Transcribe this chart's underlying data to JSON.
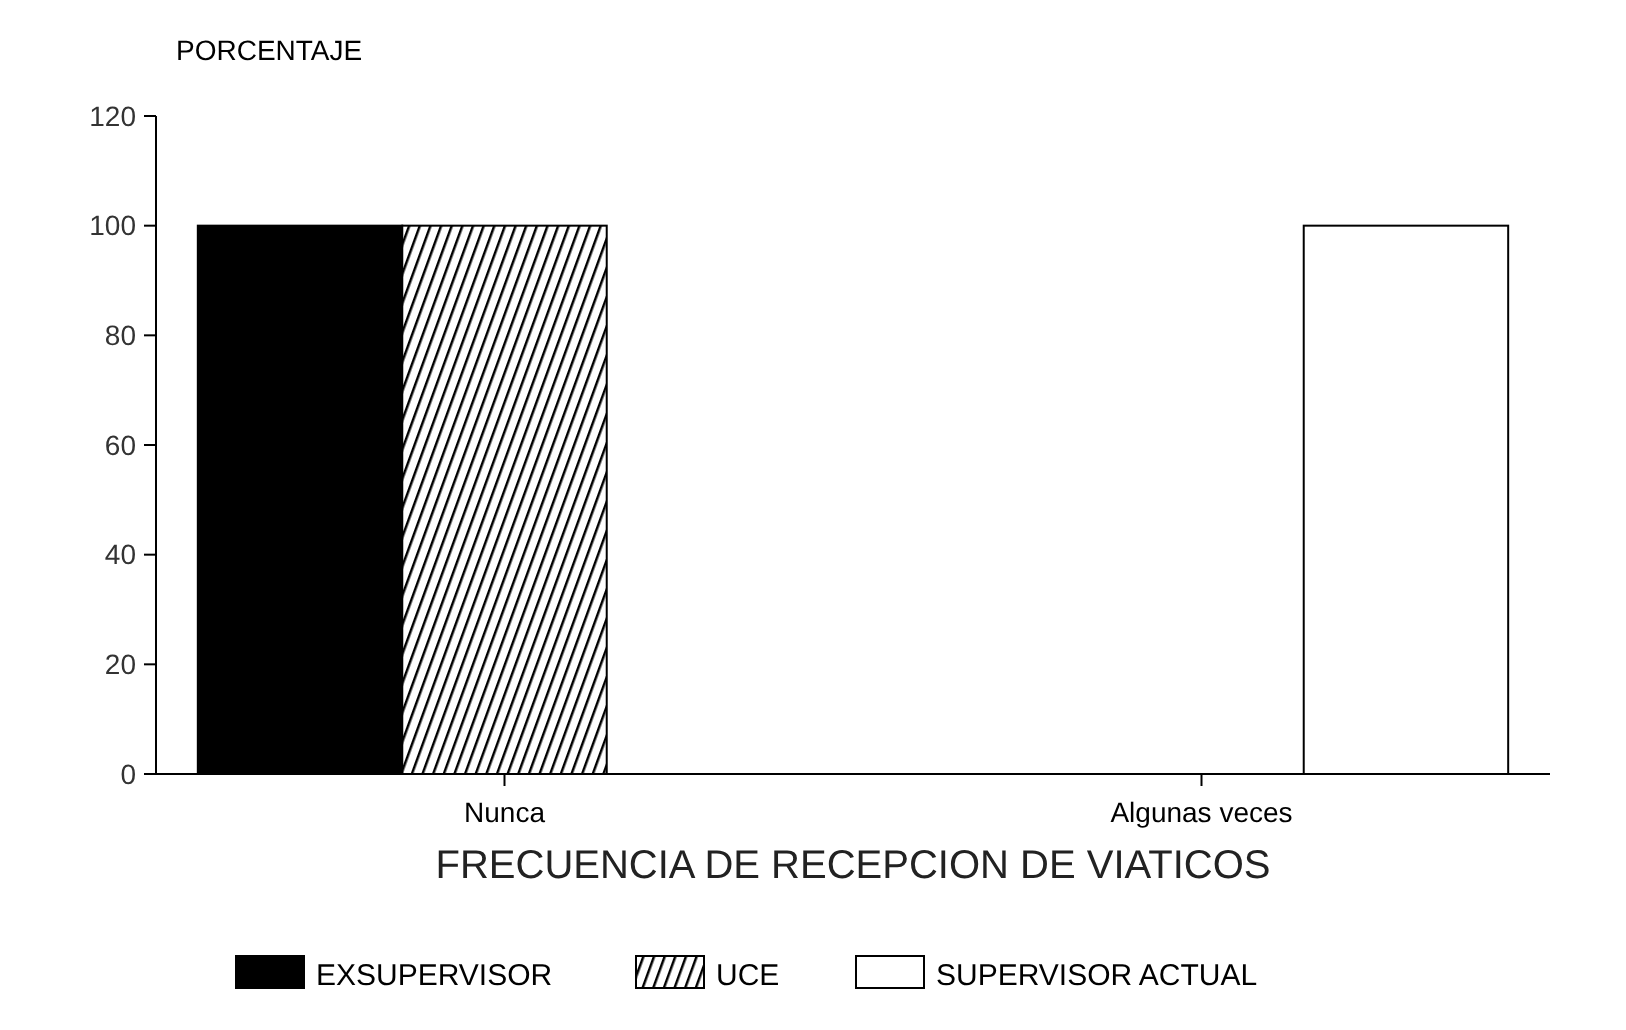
{
  "chart_data": {
    "type": "bar",
    "ylabel": "PORCENTAJE",
    "xlabel": "FRECUENCIA DE RECEPCION DE VIATICOS",
    "categories": [
      "Nunca",
      "Algunas veces"
    ],
    "series": [
      {
        "name": "EXSUPERVISOR",
        "color": "#000000",
        "values": [
          100,
          0
        ]
      },
      {
        "name": "UCE",
        "color": "#000000",
        "values": [
          100,
          0
        ]
      },
      {
        "name": "SUPERVISOR ACTUAL",
        "color": "#ffffff",
        "values": [
          0,
          100
        ]
      }
    ],
    "ylim": [
      0,
      120
    ],
    "yticks": [
      0,
      20,
      40,
      60,
      80,
      100,
      120
    ],
    "legend": "bottom"
  }
}
